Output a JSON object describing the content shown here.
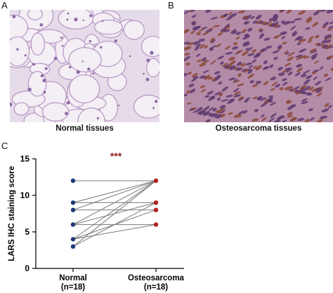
{
  "panels": {
    "a": {
      "letter": "A",
      "caption": "Normal tissues"
    },
    "b": {
      "letter": "B",
      "caption": "Osteosarcoma tissues"
    },
    "c": {
      "letter": "C"
    }
  },
  "colors": {
    "normal_bg": "#e6dbe9",
    "normal_cells": "#f4eef5",
    "normal_stain": "#b596c2",
    "tumor_bg": "#b58ca8",
    "tumor_nuclei": "#5e3a6e",
    "tumor_brown": "#8a4a3a",
    "normal_point": "#1f3a7a",
    "osteo_point": "#b22020",
    "significance": "#8b1c1c",
    "line": "#7a7a7a"
  },
  "chart_data": {
    "type": "paired-scatter",
    "title": "",
    "significance": "***",
    "xlabel": "",
    "ylabel": "LARS IHC staining score",
    "categories": [
      "Normal\n(n=18)",
      "Osteosarcoma\n(n=18)"
    ],
    "category_labels": [
      [
        "Normal",
        "(n=18)"
      ],
      [
        "Osteosarcoma",
        "(n=18)"
      ]
    ],
    "ylim": [
      0,
      15
    ],
    "yticks": [
      0,
      5,
      10,
      15
    ],
    "pairs": [
      [
        12,
        12
      ],
      [
        9,
        12
      ],
      [
        9,
        9
      ],
      [
        8,
        12
      ],
      [
        8,
        8
      ],
      [
        6,
        12
      ],
      [
        6,
        9
      ],
      [
        6,
        6
      ],
      [
        4,
        12
      ],
      [
        4,
        8
      ],
      [
        4,
        6
      ],
      [
        3,
        9
      ],
      [
        3,
        12
      ]
    ]
  }
}
